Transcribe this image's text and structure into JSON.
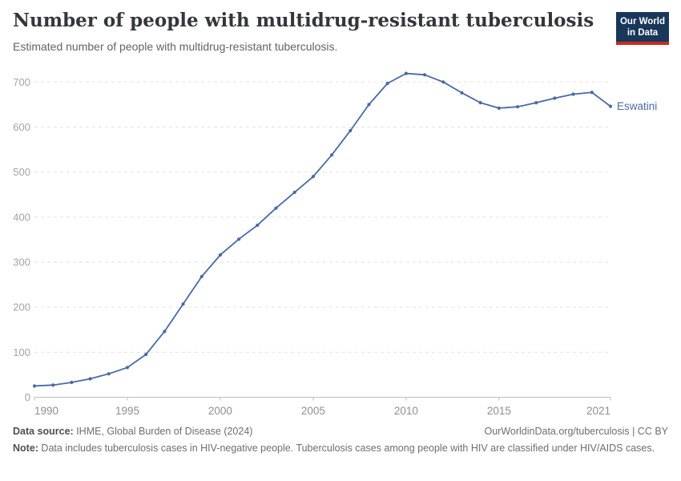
{
  "header": {
    "title": "Number of people with multidrug-resistant tuberculosis",
    "subtitle": "Estimated number of people with multidrug-resistant tuberculosis.",
    "logo": {
      "line1": "Our World",
      "line2": "in Data"
    }
  },
  "chart_data": {
    "type": "line",
    "title": "Number of people with multidrug-resistant tuberculosis",
    "entity_label": "Eswatini",
    "x": [
      1990,
      1991,
      1992,
      1993,
      1994,
      1995,
      1996,
      1997,
      1998,
      1999,
      2000,
      2001,
      2002,
      2003,
      2004,
      2005,
      2006,
      2007,
      2008,
      2009,
      2010,
      2011,
      2012,
      2013,
      2014,
      2015,
      2016,
      2017,
      2018,
      2019,
      2020,
      2021
    ],
    "series": [
      {
        "name": "Eswatini",
        "values": [
          25,
          27,
          33,
          41,
          52,
          66,
          95,
          146,
          207,
          268,
          316,
          351,
          382,
          420,
          455,
          490,
          538,
          592,
          650,
          697,
          719,
          716,
          700,
          676,
          654,
          642,
          645,
          654,
          664,
          673,
          677,
          646
        ]
      }
    ],
    "xlabel": "",
    "ylabel": "",
    "xlim": [
      1990,
      2021
    ],
    "ylim": [
      0,
      725
    ],
    "yticks": [
      0,
      100,
      200,
      300,
      400,
      500,
      600,
      700
    ],
    "xticks": [
      1990,
      1995,
      2000,
      2005,
      2010,
      2015,
      2021
    ],
    "grid": true,
    "legend_position": "right-of-last-point",
    "line_color": "#4a69a5",
    "grid_color": "#e2e2e2",
    "axis_color": "#bdbdbd",
    "ytick_label_color": "#a3a3a3",
    "xtick_label_color": "#8f8f8f"
  },
  "footer": {
    "datasource_label": "Data source:",
    "datasource_text": " IHME, Global Burden of Disease (2024)",
    "license_text": "OurWorldinData.org/tuberculosis | CC BY",
    "note_label": "Note:",
    "note_text": " Data includes tuberculosis cases in HIV-negative people. Tuberculosis cases among people with HIV are classified under HIV/AIDS cases."
  }
}
